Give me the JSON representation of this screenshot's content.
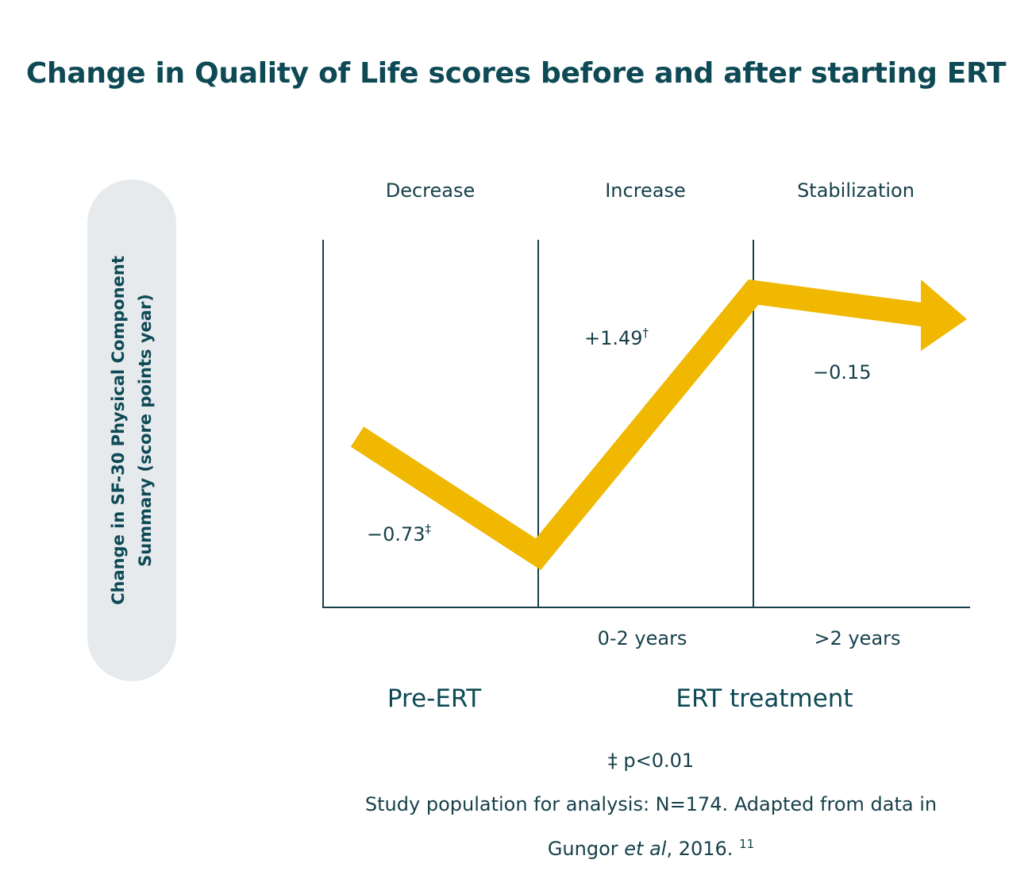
{
  "chart_data": {
    "type": "line",
    "title": "Change in Quality of Life scores before and after starting ERT",
    "ylabel": "Change in SF-30 Physical Component\nSummary (score points year)",
    "phases": [
      "Decrease",
      "Increase",
      "Stabilization"
    ],
    "x_ticks": [
      "0-2 years",
      ">2 years"
    ],
    "groups": [
      "Pre-ERT",
      "ERT treatment"
    ],
    "series": [
      {
        "values": [
          -0.73,
          1.49,
          -0.15
        ],
        "labels": [
          "−0.73",
          "+1.49",
          "−0.15"
        ],
        "markers": [
          "‡",
          "†",
          ""
        ]
      }
    ],
    "line_color": "#f0b800",
    "axis_color": "#17404a"
  },
  "footnote_marker": "‡",
  "footnote_text": "p<0.01",
  "source_line1": "Study population for analysis: N=174. Adapted from data in",
  "source_author": "Gungor ",
  "source_etal": "et al",
  "source_year": ", 2016.",
  "source_ref": "11",
  "colors": {
    "title": "#0e4a55",
    "pill": "#e6eaed",
    "text": "#17404a"
  }
}
